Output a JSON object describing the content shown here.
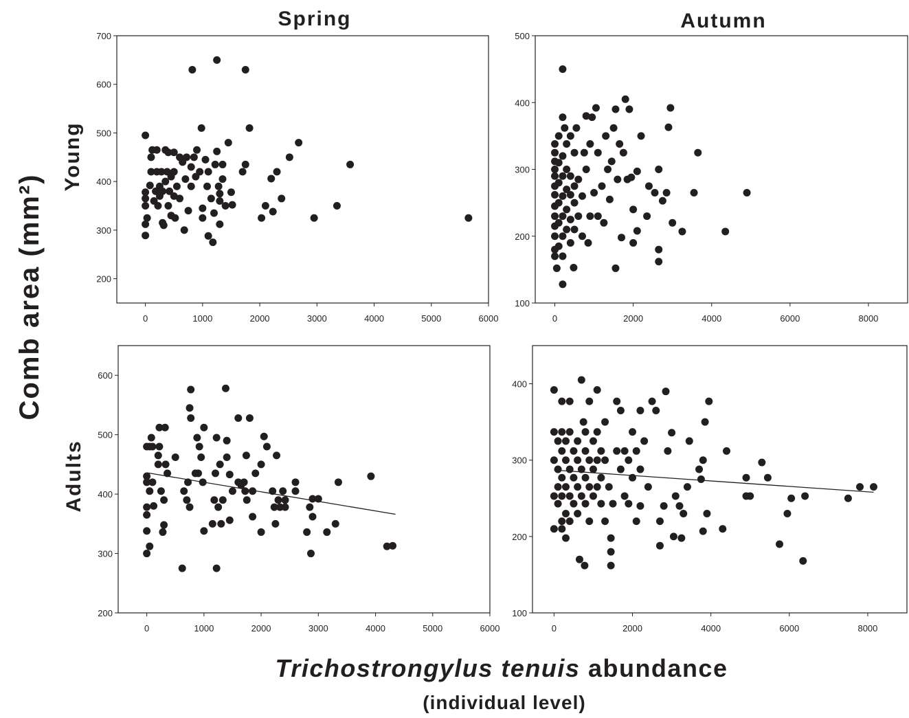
{
  "figure": {
    "y_label": "Comb area (mm²)",
    "x_label_italic": "Trichostrongylus tenuis",
    "x_label_rest": "abundance",
    "x_sublabel": "(individual level)",
    "columns": [
      "Spring",
      "Autumn"
    ],
    "rows": [
      "Young",
      "Adults"
    ]
  },
  "chart_data": [
    {
      "type": "scatter",
      "color": "#231f20",
      "xlim": [
        -500,
        6000
      ],
      "ylim": [
        150,
        700
      ],
      "xticks": [
        0,
        1000,
        2000,
        3000,
        4000,
        5000,
        6000
      ],
      "yticks": [
        200,
        300,
        400,
        500,
        600,
        700
      ],
      "x": [
        0,
        0,
        0,
        0,
        0,
        0,
        30,
        80,
        100,
        100,
        120,
        150,
        180,
        200,
        200,
        220,
        250,
        250,
        280,
        300,
        300,
        320,
        350,
        350,
        380,
        400,
        400,
        420,
        450,
        450,
        500,
        500,
        500,
        520,
        550,
        600,
        600,
        650,
        680,
        700,
        720,
        750,
        800,
        800,
        820,
        850,
        880,
        900,
        950,
        980,
        1000,
        1000,
        1050,
        1080,
        1100,
        1100,
        1150,
        1180,
        1200,
        1220,
        1250,
        1250,
        1280,
        1300,
        1300,
        1300,
        1350,
        1350,
        1400,
        1450,
        1500,
        1520,
        1700,
        1750,
        1750,
        1820,
        2030,
        2100,
        2200,
        2230,
        2300,
        2380,
        2520,
        2680,
        2950,
        3350,
        3580,
        5650
      ],
      "values": [
        495,
        378,
        365,
        350,
        312,
        289,
        325,
        392,
        420,
        450,
        465,
        360,
        380,
        465,
        420,
        350,
        390,
        370,
        420,
        315,
        380,
        310,
        465,
        400,
        420,
        350,
        460,
        380,
        330,
        410,
        460,
        420,
        370,
        325,
        390,
        450,
        365,
        440,
        300,
        405,
        450,
        340,
        430,
        390,
        630,
        450,
        410,
        465,
        420,
        510,
        345,
        325,
        445,
        390,
        420,
        288,
        365,
        275,
        335,
        435,
        650,
        462,
        390,
        312,
        360,
        375,
        435,
        405,
        350,
        480,
        378,
        352,
        420,
        630,
        435,
        510,
        325,
        350,
        406,
        338,
        420,
        365,
        450,
        480,
        325,
        350,
        435,
        325
      ]
    },
    {
      "type": "scatter",
      "color": "#231f20",
      "xlim": [
        -500,
        9000
      ],
      "ylim": [
        100,
        500
      ],
      "xticks": [
        0,
        2000,
        4000,
        6000,
        8000
      ],
      "yticks": [
        100,
        200,
        300,
        400,
        500
      ],
      "x": [
        0,
        0,
        0,
        0,
        0,
        0,
        0,
        0,
        0,
        0,
        0,
        0,
        0,
        50,
        100,
        100,
        100,
        100,
        100,
        100,
        200,
        200,
        200,
        200,
        200,
        200,
        200,
        200,
        200,
        250,
        300,
        300,
        300,
        300,
        300,
        400,
        400,
        400,
        400,
        400,
        480,
        500,
        500,
        500,
        500,
        550,
        600,
        600,
        700,
        700,
        750,
        800,
        800,
        850,
        900,
        900,
        950,
        1000,
        1050,
        1100,
        1100,
        1200,
        1250,
        1300,
        1350,
        1400,
        1450,
        1500,
        1550,
        1550,
        1600,
        1650,
        1700,
        1750,
        1800,
        1850,
        1900,
        1950,
        2000,
        2000,
        2100,
        2100,
        2200,
        2350,
        2400,
        2550,
        2650,
        2650,
        2650,
        2750,
        2850,
        2900,
        2950,
        3000,
        3250,
        3550,
        3650,
        4350,
        4900
      ],
      "values": [
        170,
        180,
        200,
        215,
        230,
        245,
        262,
        275,
        290,
        300,
        312,
        325,
        338,
        152,
        185,
        220,
        250,
        280,
        310,
        350,
        128,
        170,
        200,
        230,
        260,
        290,
        320,
        378,
        450,
        362,
        210,
        240,
        270,
        300,
        338,
        190,
        225,
        262,
        290,
        350,
        153,
        210,
        250,
        275,
        325,
        362,
        230,
        285,
        200,
        260,
        325,
        380,
        300,
        190,
        230,
        338,
        378,
        265,
        392,
        325,
        230,
        275,
        220,
        350,
        300,
        255,
        312,
        362,
        152,
        390,
        285,
        338,
        198,
        325,
        405,
        285,
        390,
        288,
        240,
        190,
        297,
        208,
        350,
        230,
        275,
        265,
        300,
        180,
        162,
        253,
        265,
        363,
        392,
        220,
        207,
        265,
        325,
        207,
        265
      ]
    },
    {
      "type": "scatter",
      "color": "#231f20",
      "xlim": [
        -500,
        6000
      ],
      "ylim": [
        200,
        650
      ],
      "xticks": [
        0,
        1000,
        2000,
        3000,
        4000,
        5000,
        6000
      ],
      "yticks": [
        200,
        300,
        400,
        500,
        600
      ],
      "x": [
        0,
        0,
        0,
        0,
        0,
        0,
        0,
        50,
        50,
        50,
        80,
        100,
        100,
        120,
        200,
        200,
        220,
        220,
        250,
        280,
        300,
        300,
        320,
        330,
        360,
        500,
        620,
        650,
        700,
        720,
        750,
        750,
        770,
        770,
        850,
        880,
        900,
        920,
        950,
        980,
        1000,
        1000,
        1150,
        1180,
        1200,
        1220,
        1220,
        1250,
        1280,
        1300,
        1330,
        1380,
        1400,
        1400,
        1450,
        1450,
        1500,
        1600,
        1600,
        1650,
        1700,
        1720,
        1740,
        1750,
        1800,
        1850,
        1850,
        1900,
        2000,
        2000,
        2050,
        2100,
        2200,
        2230,
        2250,
        2270,
        2300,
        2330,
        2380,
        2420,
        2420,
        2600,
        2600,
        2800,
        2850,
        2870,
        2900,
        2900,
        3000,
        3150,
        3300,
        3350,
        3920,
        4200,
        4300
      ],
      "values": [
        480,
        430,
        420,
        378,
        365,
        338,
        300,
        480,
        405,
        312,
        495,
        480,
        420,
        380,
        450,
        465,
        480,
        512,
        405,
        336,
        390,
        348,
        512,
        450,
        435,
        462,
        275,
        405,
        390,
        420,
        378,
        545,
        528,
        576,
        435,
        495,
        435,
        480,
        462,
        420,
        512,
        338,
        350,
        390,
        435,
        275,
        495,
        378,
        450,
        350,
        390,
        578,
        462,
        490,
        433,
        356,
        405,
        528,
        420,
        415,
        420,
        405,
        465,
        390,
        528,
        405,
        362,
        435,
        336,
        450,
        497,
        480,
        405,
        378,
        350,
        465,
        390,
        378,
        405,
        390,
        378,
        420,
        405,
        336,
        378,
        300,
        362,
        392,
        392,
        336,
        350,
        420,
        430,
        312,
        313
      ],
      "trend": {
        "x": [
          0,
          4350
        ],
        "values": [
          436,
          366
        ]
      }
    },
    {
      "type": "scatter",
      "color": "#231f20",
      "xlim": [
        -550,
        9000
      ],
      "ylim": [
        100,
        450
      ],
      "xticks": [
        0,
        2000,
        4000,
        6000,
        8000
      ],
      "yticks": [
        100,
        200,
        300,
        400
      ],
      "x": [
        0,
        0,
        0,
        0,
        0,
        100,
        100,
        100,
        100,
        200,
        200,
        200,
        200,
        200,
        200,
        200,
        300,
        300,
        300,
        300,
        300,
        400,
        400,
        400,
        400,
        400,
        500,
        500,
        500,
        600,
        600,
        600,
        600,
        650,
        700,
        700,
        700,
        750,
        780,
        800,
        800,
        800,
        800,
        900,
        900,
        900,
        900,
        1000,
        1000,
        1000,
        1100,
        1100,
        1100,
        1100,
        1200,
        1200,
        1200,
        1300,
        1300,
        1300,
        1400,
        1450,
        1450,
        1450,
        1500,
        1600,
        1600,
        1700,
        1700,
        1800,
        1800,
        1900,
        1900,
        2000,
        2000,
        2100,
        2100,
        2200,
        2200,
        2200,
        2300,
        2400,
        2500,
        2600,
        2700,
        2700,
        2800,
        2850,
        2900,
        3000,
        3050,
        3100,
        3200,
        3250,
        3300,
        3400,
        3450,
        3700,
        3750,
        3800,
        3800,
        3850,
        3900,
        3950,
        4300,
        4400,
        4900,
        4900,
        5000,
        5300,
        5450,
        5750,
        5950,
        6050,
        6350,
        6400,
        7500,
        7800,
        8150
      ],
      "values": [
        392,
        337,
        300,
        253,
        210,
        325,
        288,
        265,
        243,
        377,
        337,
        312,
        277,
        253,
        220,
        210,
        325,
        300,
        265,
        230,
        198,
        377,
        337,
        288,
        253,
        220,
        312,
        277,
        243,
        325,
        300,
        265,
        230,
        170,
        405,
        288,
        253,
        350,
        162,
        337,
        312,
        277,
        243,
        377,
        300,
        265,
        220,
        325,
        288,
        253,
        392,
        337,
        300,
        265,
        312,
        277,
        243,
        350,
        300,
        220,
        265,
        198,
        180,
        162,
        243,
        377,
        312,
        365,
        288,
        312,
        253,
        300,
        243,
        337,
        277,
        312,
        220,
        365,
        288,
        240,
        325,
        265,
        377,
        365,
        188,
        220,
        240,
        390,
        312,
        336,
        200,
        253,
        240,
        198,
        230,
        265,
        325,
        288,
        275,
        207,
        300,
        350,
        230,
        377,
        210,
        312,
        277,
        253,
        253,
        297,
        277,
        190,
        230,
        250,
        168,
        253,
        250,
        265,
        265
      ],
      "trend": {
        "x": [
          0,
          8150
        ],
        "values": [
          287,
          258
        ]
      }
    }
  ]
}
